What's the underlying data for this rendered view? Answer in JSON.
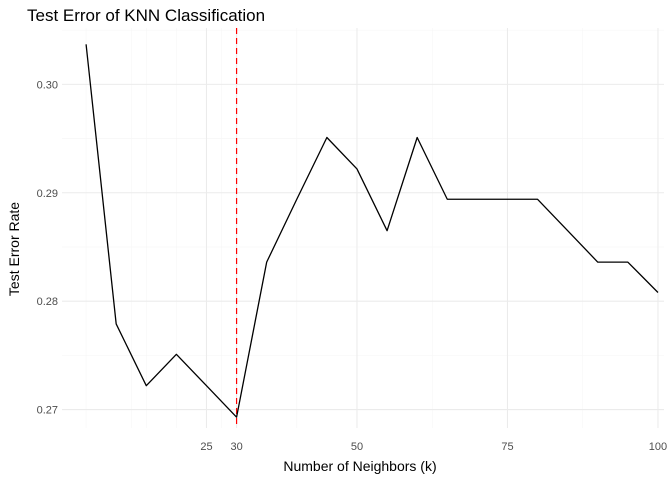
{
  "chart_data": {
    "type": "line",
    "title": "Test Error of KNN Classification",
    "xlabel": "Number of Neighbors (k)",
    "ylabel": "Test Error Rate",
    "x_ticks": [
      25,
      30,
      50,
      75,
      100
    ],
    "y_ticks": [
      0.27,
      0.28,
      0.29,
      0.3
    ],
    "y_tick_labels": [
      "0.27",
      "0.28",
      "0.29",
      "0.30"
    ],
    "xlim": [
      1,
      101
    ],
    "ylim": [
      0.2683,
      0.3052
    ],
    "grid": true,
    "legend": "none",
    "series": [
      {
        "x": [
          5,
          10,
          15,
          20,
          25,
          30,
          35,
          40,
          45,
          50,
          55,
          60,
          65,
          70,
          75,
          80,
          85,
          90,
          95,
          100
        ],
        "y": [
          0.3037,
          0.2779,
          0.2722,
          0.2751,
          0.2722,
          0.2693,
          0.2836,
          0.2894,
          0.2951,
          0.2922,
          0.2865,
          0.2951,
          0.2894,
          0.2894,
          0.2894,
          0.2894,
          0.2865,
          0.2836,
          0.2836,
          0.2808
        ],
        "color": "#000000"
      }
    ],
    "reference_lines": [
      {
        "orientation": "vertical",
        "x": 30,
        "color": "#ff0000",
        "style": "dashed"
      }
    ]
  }
}
